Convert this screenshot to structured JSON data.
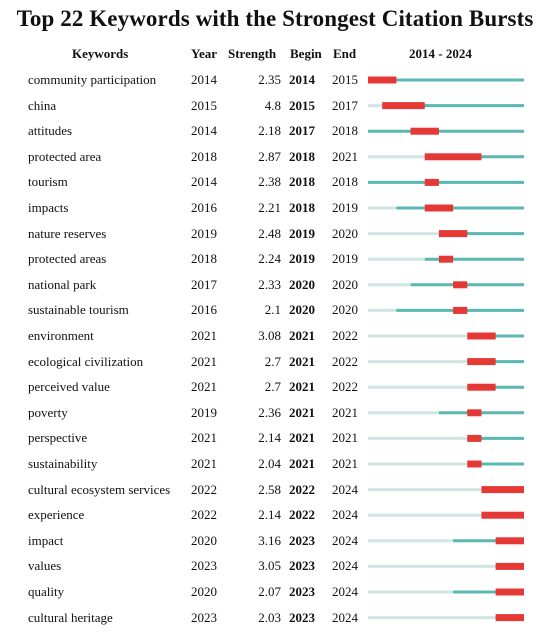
{
  "chart_data": {
    "type": "table",
    "title": "Top 22 Keywords with the Strongest Citation Bursts",
    "columns": [
      "Keywords",
      "Year",
      "Strength",
      "Begin",
      "End",
      "2014 - 2024"
    ],
    "timeline": {
      "start": 2014,
      "end": 2024
    },
    "colors": {
      "burst": "#e53935",
      "active": "#5bb8b5",
      "inactive": "#cfe6e5"
    },
    "rows": [
      {
        "keyword": "community participation",
        "year": "2014",
        "strength": "2.35",
        "begin": "2014",
        "end": "2015"
      },
      {
        "keyword": "china",
        "year": "2015",
        "strength": "4.8",
        "begin": "2015",
        "end": "2017"
      },
      {
        "keyword": "attitudes",
        "year": "2014",
        "strength": "2.18",
        "begin": "2017",
        "end": "2018"
      },
      {
        "keyword": "protected area",
        "year": "2018",
        "strength": "2.87",
        "begin": "2018",
        "end": "2021"
      },
      {
        "keyword": "tourism",
        "year": "2014",
        "strength": "2.38",
        "begin": "2018",
        "end": "2018"
      },
      {
        "keyword": "impacts",
        "year": "2016",
        "strength": "2.21",
        "begin": "2018",
        "end": "2019"
      },
      {
        "keyword": "nature reserves",
        "year": "2019",
        "strength": "2.48",
        "begin": "2019",
        "end": "2020"
      },
      {
        "keyword": "protected areas",
        "year": "2018",
        "strength": "2.24",
        "begin": "2019",
        "end": "2019"
      },
      {
        "keyword": "national park",
        "year": "2017",
        "strength": "2.33",
        "begin": "2020",
        "end": "2020"
      },
      {
        "keyword": "sustainable tourism",
        "year": "2016",
        "strength": "2.1",
        "begin": "2020",
        "end": "2020"
      },
      {
        "keyword": "environment",
        "year": "2021",
        "strength": "3.08",
        "begin": "2021",
        "end": "2022"
      },
      {
        "keyword": "ecological civilization",
        "year": "2021",
        "strength": "2.7",
        "begin": "2021",
        "end": "2022"
      },
      {
        "keyword": "perceived value",
        "year": "2021",
        "strength": "2.7",
        "begin": "2021",
        "end": "2022"
      },
      {
        "keyword": "poverty",
        "year": "2019",
        "strength": "2.36",
        "begin": "2021",
        "end": "2021"
      },
      {
        "keyword": "perspective",
        "year": "2021",
        "strength": "2.14",
        "begin": "2021",
        "end": "2021"
      },
      {
        "keyword": "sustainability",
        "year": "2021",
        "strength": "2.04",
        "begin": "2021",
        "end": "2021"
      },
      {
        "keyword": "cultural ecosystem services",
        "year": "2022",
        "strength": "2.58",
        "begin": "2022",
        "end": "2024"
      },
      {
        "keyword": "experience",
        "year": "2022",
        "strength": "2.14",
        "begin": "2022",
        "end": "2024"
      },
      {
        "keyword": "impact",
        "year": "2020",
        "strength": "3.16",
        "begin": "2023",
        "end": "2024"
      },
      {
        "keyword": "values",
        "year": "2023",
        "strength": "3.05",
        "begin": "2023",
        "end": "2024"
      },
      {
        "keyword": "quality",
        "year": "2020",
        "strength": "2.07",
        "begin": "2023",
        "end": "2024"
      },
      {
        "keyword": "cultural heritage",
        "year": "2023",
        "strength": "2.03",
        "begin": "2023",
        "end": "2024"
      }
    ]
  }
}
